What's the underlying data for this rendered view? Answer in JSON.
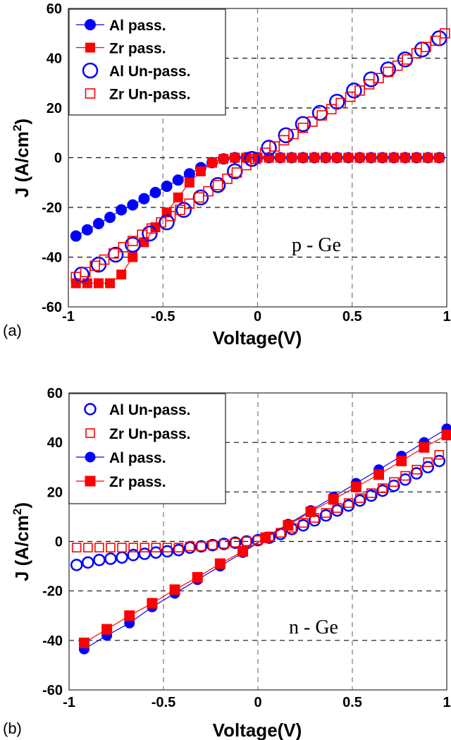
{
  "chart_data": [
    {
      "type": "line",
      "panel_label": "(a)",
      "annotation": "p - Ge",
      "xlabel": "Voltage(V)",
      "ylabel": "J (A/cm",
      "ylabel_sup": "2",
      "ylabel_close": ")",
      "xlim": [
        -1,
        1
      ],
      "ylim": [
        -60,
        60
      ],
      "xticks": [
        "-1",
        "-0.5",
        "0",
        "0.5",
        "1"
      ],
      "yticks": [
        "60",
        "40",
        "20",
        "0",
        "-20",
        "-40",
        "-60"
      ],
      "grid": true,
      "legend": "top-left",
      "series": [
        {
          "name": "Al pass.",
          "color": "#0000ff",
          "marker": "circle",
          "filled": true,
          "line": true,
          "x": [
            -0.96,
            -0.9,
            -0.84,
            -0.78,
            -0.72,
            -0.66,
            -0.6,
            -0.54,
            -0.48,
            -0.42,
            -0.36,
            -0.3,
            -0.24,
            -0.18,
            -0.12,
            -0.06,
            0,
            0.06,
            0.12,
            0.18,
            0.24,
            0.3,
            0.36,
            0.42,
            0.48,
            0.54,
            0.6,
            0.66,
            0.72,
            0.78,
            0.84,
            0.9,
            0.96
          ],
          "y": [
            -31.5,
            -29,
            -26.5,
            -24,
            -21,
            -19,
            -16.5,
            -14,
            -11.5,
            -9,
            -6.5,
            -4,
            -2,
            -0.5,
            0,
            0,
            0,
            0,
            0,
            0,
            0,
            0,
            0,
            0,
            0,
            0,
            0,
            0,
            0,
            0,
            0,
            0,
            0
          ]
        },
        {
          "name": "Zr pass.",
          "color": "#ff0000",
          "marker": "square",
          "filled": true,
          "line": true,
          "x": [
            -0.96,
            -0.9,
            -0.84,
            -0.78,
            -0.72,
            -0.66,
            -0.6,
            -0.54,
            -0.48,
            -0.42,
            -0.36,
            -0.3,
            -0.24,
            -0.18,
            -0.12,
            -0.06,
            0,
            0.06,
            0.12,
            0.18,
            0.24,
            0.3,
            0.36,
            0.42,
            0.48,
            0.54,
            0.6,
            0.66,
            0.72,
            0.78,
            0.84,
            0.9,
            0.96
          ],
          "y": [
            -50.5,
            -50.5,
            -50.5,
            -50.5,
            -47,
            -40,
            -34,
            -28,
            -22,
            -16,
            -10,
            -5.5,
            -2,
            -0.5,
            0,
            0,
            0,
            0,
            0,
            0,
            0,
            0,
            0,
            0,
            0,
            0,
            0,
            0,
            0,
            0,
            0,
            0,
            0
          ]
        },
        {
          "name": "Al Un-pass.",
          "color": "#0000ff",
          "marker": "circle",
          "filled": false,
          "line": false,
          "x": [
            -0.93,
            -0.84,
            -0.75,
            -0.66,
            -0.57,
            -0.48,
            -0.39,
            -0.3,
            -0.21,
            -0.12,
            -0.03,
            0.06,
            0.15,
            0.24,
            0.33,
            0.42,
            0.51,
            0.6,
            0.69,
            0.78,
            0.87,
            0.96
          ],
          "y": [
            -47,
            -43,
            -39,
            -35,
            -30.5,
            -26,
            -21,
            -16,
            -11,
            -5.5,
            -0.5,
            4,
            9,
            13.5,
            18,
            22.5,
            27,
            31.5,
            35.5,
            39.5,
            43.5,
            48
          ]
        },
        {
          "name": "Zr Un-pass.",
          "color": "#ff0000",
          "marker": "square",
          "filled": false,
          "line": false,
          "x": [
            -0.96,
            -0.91,
            -0.86,
            -0.81,
            -0.76,
            -0.71,
            -0.66,
            -0.61,
            -0.56,
            -0.51,
            -0.46,
            -0.41,
            -0.36,
            -0.31,
            -0.26,
            -0.21,
            -0.16,
            -0.11,
            -0.06,
            -0.01,
            0.04,
            0.09,
            0.14,
            0.19,
            0.24,
            0.29,
            0.34,
            0.39,
            0.44,
            0.49,
            0.54,
            0.59,
            0.64,
            0.69,
            0.74,
            0.79,
            0.84,
            0.89,
            0.94,
            0.99
          ],
          "y": [
            -48,
            -46,
            -43.5,
            -41,
            -38.5,
            -36,
            -33.5,
            -31,
            -28.5,
            -26,
            -23.5,
            -21,
            -18.5,
            -16,
            -13.5,
            -11,
            -8.5,
            -6,
            -3,
            -0.5,
            2,
            4.5,
            7,
            9.5,
            12,
            14.5,
            17,
            19.5,
            22,
            24.5,
            27,
            29.5,
            32,
            34.5,
            37,
            39.5,
            42,
            44.5,
            47,
            50
          ]
        }
      ]
    },
    {
      "type": "line",
      "panel_label": "(b)",
      "annotation": "n - Ge",
      "xlabel": "Voltage(V)",
      "ylabel": "J (A/cm",
      "ylabel_sup": "2",
      "ylabel_close": ")",
      "xlim": [
        -1,
        1
      ],
      "ylim": [
        -60,
        60
      ],
      "xticks": [
        "-1",
        "-0.5",
        "0",
        "0.5",
        "1"
      ],
      "yticks": [
        "60",
        "40",
        "20",
        "0",
        "-20",
        "-40",
        "-60"
      ],
      "grid": true,
      "legend": "top-left",
      "series": [
        {
          "name": "Al Un-pass.",
          "color": "#0000ff",
          "marker": "circle",
          "filled": false,
          "line": false,
          "x": [
            -0.96,
            -0.9,
            -0.84,
            -0.78,
            -0.72,
            -0.66,
            -0.6,
            -0.54,
            -0.48,
            -0.42,
            -0.36,
            -0.3,
            -0.24,
            -0.18,
            -0.12,
            -0.06,
            0,
            0.06,
            0.12,
            0.18,
            0.24,
            0.3,
            0.36,
            0.42,
            0.48,
            0.54,
            0.6,
            0.66,
            0.72,
            0.78,
            0.84,
            0.9,
            0.96
          ],
          "y": [
            -9.5,
            -8.5,
            -7.5,
            -7,
            -6.5,
            -5.5,
            -5,
            -4.5,
            -4,
            -3.5,
            -2.5,
            -2,
            -1.5,
            -1,
            -0.5,
            0,
            0.5,
            1.5,
            3,
            5,
            6.5,
            8.5,
            10.5,
            12.5,
            14.5,
            16.5,
            18.5,
            20.5,
            22.5,
            25,
            27.5,
            30,
            32.5
          ]
        },
        {
          "name": "Zr Un-pass.",
          "color": "#ff0000",
          "marker": "square",
          "filled": false,
          "line": false,
          "x": [
            -0.96,
            -0.9,
            -0.84,
            -0.78,
            -0.72,
            -0.66,
            -0.6,
            -0.54,
            -0.48,
            -0.42,
            -0.36,
            -0.3,
            -0.24,
            -0.18,
            -0.12,
            -0.06,
            0,
            0.06,
            0.12,
            0.18,
            0.24,
            0.3,
            0.36,
            0.42,
            0.48,
            0.54,
            0.6,
            0.66,
            0.72,
            0.78,
            0.84,
            0.9,
            0.96
          ],
          "y": [
            -2.5,
            -2.5,
            -2.5,
            -2.5,
            -2.5,
            -2.5,
            -2.5,
            -2.5,
            -2.5,
            -2.5,
            -2,
            -2,
            -1.5,
            -1,
            -0.5,
            0,
            0.5,
            2,
            3.5,
            5.5,
            7.5,
            9.5,
            11.5,
            13.5,
            15.5,
            17.5,
            19.5,
            21.5,
            24,
            26.5,
            29,
            32,
            35
          ]
        },
        {
          "name": "Al pass.",
          "color": "#0000ff",
          "marker": "circle",
          "filled": true,
          "line": true,
          "x": [
            -0.92,
            -0.8,
            -0.68,
            -0.56,
            -0.44,
            -0.32,
            -0.2,
            -0.08,
            0.04,
            0.16,
            0.28,
            0.4,
            0.52,
            0.64,
            0.76,
            0.88,
            1.0
          ],
          "y": [
            -43.5,
            -38,
            -33,
            -26.5,
            -21,
            -15.5,
            -10,
            -4.5,
            1.5,
            7,
            12.5,
            18,
            23.5,
            29,
            34.5,
            40,
            45.5
          ]
        },
        {
          "name": "Zr pass.",
          "color": "#ff0000",
          "marker": "square",
          "filled": true,
          "line": true,
          "x": [
            -0.92,
            -0.8,
            -0.68,
            -0.56,
            -0.44,
            -0.32,
            -0.2,
            -0.08,
            0.04,
            0.16,
            0.28,
            0.4,
            0.52,
            0.64,
            0.76,
            0.88,
            1.0
          ],
          "y": [
            -41,
            -35.5,
            -30,
            -25,
            -19.5,
            -14.5,
            -9,
            -4,
            1.5,
            6.5,
            12,
            17,
            22,
            27,
            32.5,
            38,
            43
          ]
        }
      ]
    }
  ]
}
